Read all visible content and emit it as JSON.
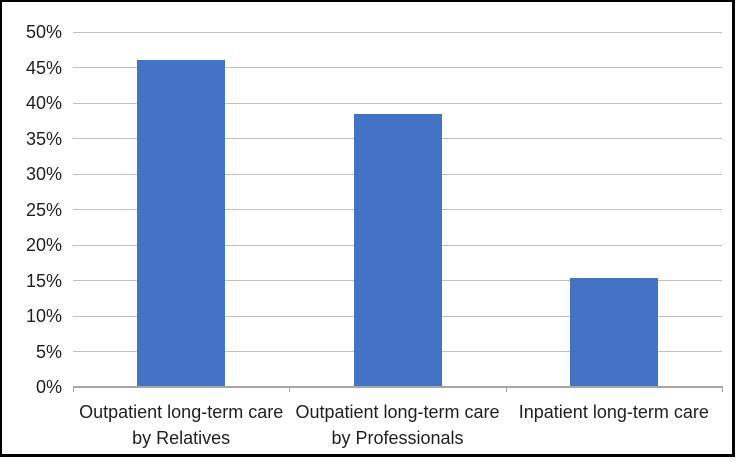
{
  "chart_data": {
    "type": "bar",
    "categories": [
      "Outpatient long-term care by Relatives",
      "Outpatient long-term care by Professionals",
      "Inpatient long-term care"
    ],
    "values": [
      46,
      38.4,
      15.4
    ],
    "title": "",
    "xlabel": "",
    "ylabel": "",
    "ylim": [
      0,
      50
    ],
    "ytick_step": 5,
    "ytick_labels": [
      "0%",
      "5%",
      "10%",
      "15%",
      "20%",
      "25%",
      "30%",
      "35%",
      "40%",
      "45%",
      "50%"
    ],
    "grid": true,
    "legend": false,
    "bar_color": "#4472C4",
    "gridline_color": "#BFBFBF",
    "axis_color": "#A6A6A6",
    "text_color": "#1F1F1F",
    "frame_border_color": "#000000",
    "background_color": "#FFFFFF"
  }
}
